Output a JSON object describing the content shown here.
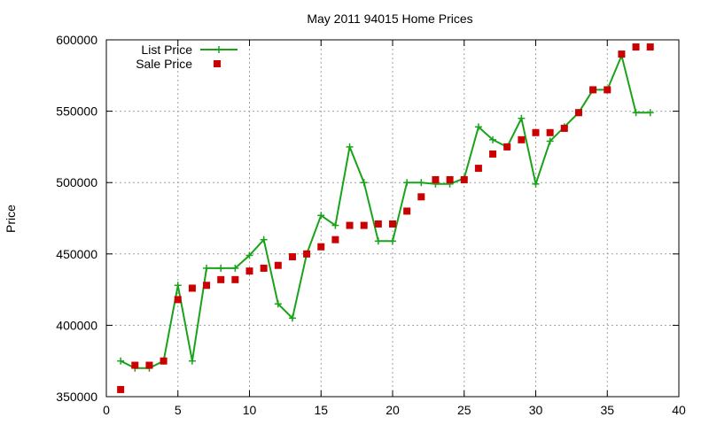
{
  "chart_data": {
    "type": "line",
    "title": "May 2011 94015 Home Prices",
    "xlabel": "",
    "ylabel": "Price",
    "xlim": [
      0,
      40
    ],
    "ylim": [
      350000,
      600000
    ],
    "xticks": [
      0,
      5,
      10,
      15,
      20,
      25,
      30,
      35,
      40
    ],
    "yticks": [
      350000,
      400000,
      450000,
      500000,
      550000,
      600000
    ],
    "grid": true,
    "legend_position": "top-left",
    "series": [
      {
        "name": "List Price",
        "style": "line-plus",
        "color": "#1aa31a",
        "x": [
          1,
          2,
          3,
          4,
          5,
          6,
          7,
          8,
          9,
          10,
          11,
          12,
          13,
          14,
          15,
          16,
          17,
          18,
          19,
          20,
          21,
          22,
          23,
          24,
          25,
          26,
          27,
          28,
          29,
          30,
          31,
          32,
          33,
          34,
          35,
          36,
          37,
          38
        ],
        "y": [
          375000,
          370000,
          370000,
          375000,
          428000,
          375000,
          440000,
          440000,
          440000,
          449000,
          460000,
          415000,
          405000,
          450000,
          477000,
          470000,
          525000,
          500000,
          459000,
          459000,
          500000,
          500000,
          499000,
          499000,
          503000,
          539000,
          530000,
          525000,
          545000,
          499000,
          529000,
          539000,
          549000,
          565000,
          565000,
          589000,
          549000,
          549000
        ]
      },
      {
        "name": "Sale Price",
        "style": "square-points",
        "color": "#cc0000",
        "x": [
          1,
          2,
          3,
          4,
          5,
          6,
          7,
          8,
          9,
          10,
          11,
          12,
          13,
          14,
          15,
          16,
          17,
          18,
          19,
          20,
          21,
          22,
          23,
          24,
          25,
          26,
          27,
          28,
          29,
          30,
          31,
          32,
          33,
          34,
          35,
          36,
          37,
          38
        ],
        "y": [
          355000,
          372000,
          372000,
          375000,
          418000,
          426000,
          428000,
          432000,
          432000,
          438000,
          440000,
          442000,
          448000,
          450000,
          455000,
          460000,
          470000,
          470000,
          471000,
          471000,
          480000,
          490000,
          502000,
          502000,
          502000,
          510000,
          520000,
          525000,
          530000,
          535000,
          535000,
          538000,
          549000,
          565000,
          565000,
          590000,
          595000,
          595000
        ]
      }
    ]
  }
}
